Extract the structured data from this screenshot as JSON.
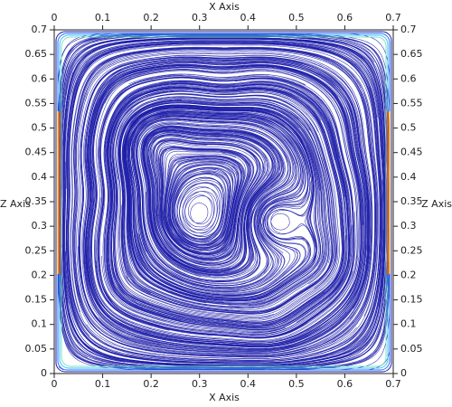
{
  "chart_data": {
    "type": "streamline",
    "x_label": "X Axis",
    "y_label": "Z Axis",
    "xlim": [
      0,
      0.7
    ],
    "ylim": [
      0,
      0.7
    ],
    "xticks": [
      0,
      0.1,
      0.2,
      0.3,
      0.4,
      0.5,
      0.6,
      0.7
    ],
    "yticks": [
      0,
      0.05,
      0.1,
      0.15,
      0.2,
      0.25,
      0.3,
      0.35,
      0.4,
      0.45,
      0.5,
      0.55,
      0.6,
      0.65,
      0.7
    ],
    "color": "#1c1ca8"
  }
}
